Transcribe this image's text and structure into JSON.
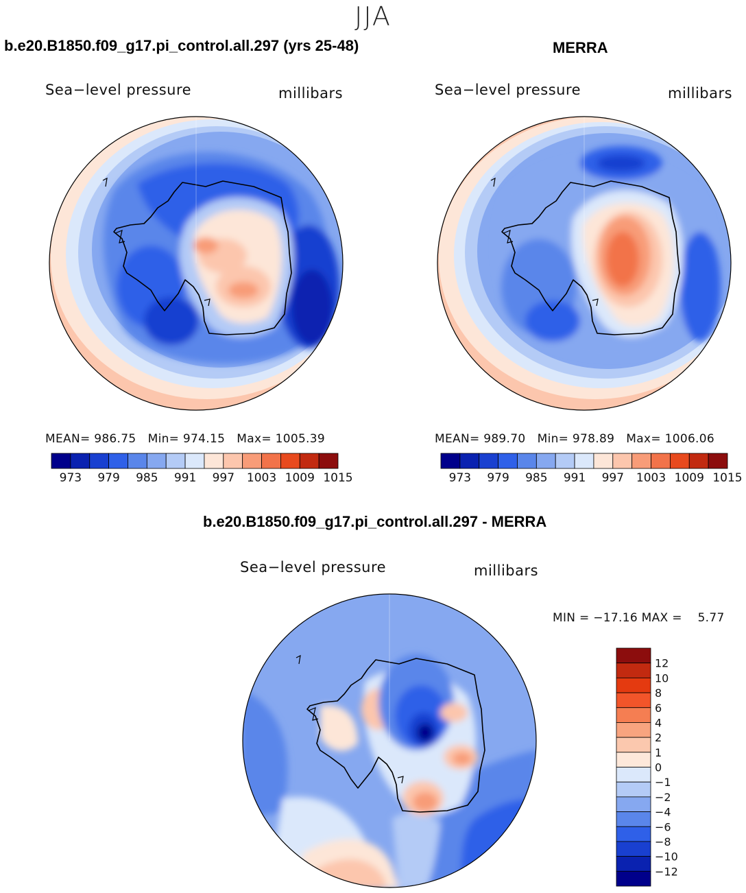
{
  "figure": {
    "season": "JJA",
    "title_left": "b.e20.B1850.f09_g17.pi_control.all.297 (yrs 25-48)",
    "title_right": "MERRA",
    "title_diff": "b.e20.B1850.f09_g17.pi_control.all.297 - MERRA"
  },
  "panels": {
    "model": {
      "variable": "Sea−level pressure",
      "units": "millibars",
      "stats": "MEAN= 986.75   Min= 974.15   Max= 1005.39"
    },
    "obs": {
      "variable": "Sea−level pressure",
      "units": "millibars",
      "stats": "MEAN= 989.70   Min= 978.89   Max= 1006.06"
    },
    "diff": {
      "variable": "Sea−level pressure",
      "units": "millibars",
      "stats": "MIN = −17.16 MAX =    5.77"
    }
  },
  "chart_data": [
    {
      "type": "heatmap",
      "title": "b.e20.B1850.f09_g17.pi_control.all.297 (yrs 25-48)",
      "variable": "Sea-level pressure",
      "units": "millibars",
      "projection": "south polar stereographic",
      "mean": 986.75,
      "min": 974.15,
      "max": 1005.39,
      "levels": [
        973,
        976,
        979,
        982,
        985,
        988,
        991,
        994,
        997,
        1000,
        1003,
        1006,
        1009,
        1012,
        1015
      ],
      "colorbar_tick_labels": [
        "973",
        "979",
        "985",
        "991",
        "997",
        "1003",
        "1009",
        "1015"
      ],
      "colors": [
        "#00008b",
        "#0a22b0",
        "#1940d0",
        "#2f60e8",
        "#5a86ea",
        "#86a8f0",
        "#b4cbf6",
        "#dbe8fb",
        "#fde6d8",
        "#fcc6ad",
        "#f89c78",
        "#f2734a",
        "#e84a1e",
        "#c22a10",
        "#8c0d0d"
      ]
    },
    {
      "type": "heatmap",
      "title": "MERRA",
      "variable": "Sea-level pressure",
      "units": "millibars",
      "projection": "south polar stereographic",
      "mean": 989.7,
      "min": 978.89,
      "max": 1006.06,
      "levels": [
        973,
        976,
        979,
        982,
        985,
        988,
        991,
        994,
        997,
        1000,
        1003,
        1006,
        1009,
        1012,
        1015
      ],
      "colorbar_tick_labels": [
        "973",
        "979",
        "985",
        "991",
        "997",
        "1003",
        "1009",
        "1015"
      ],
      "colors": [
        "#00008b",
        "#0a22b0",
        "#1940d0",
        "#2f60e8",
        "#5a86ea",
        "#86a8f0",
        "#b4cbf6",
        "#dbe8fb",
        "#fde6d8",
        "#fcc6ad",
        "#f89c78",
        "#f2734a",
        "#e84a1e",
        "#c22a10",
        "#8c0d0d"
      ]
    },
    {
      "type": "heatmap",
      "title": "b.e20.B1850.f09_g17.pi_control.all.297 - MERRA",
      "variable": "Sea-level pressure",
      "units": "millibars",
      "projection": "south polar stereographic",
      "min": -17.16,
      "max": 5.77,
      "levels": [
        -12,
        -10,
        -8,
        -6,
        -4,
        -2,
        -1,
        0,
        1,
        2,
        4,
        6,
        8,
        10,
        12
      ],
      "colorbar_tick_labels": [
        "12",
        "10",
        "8",
        "6",
        "4",
        "2",
        "1",
        "0",
        "−1",
        "−2",
        "−4",
        "−6",
        "−8",
        "−10",
        "−12"
      ],
      "colors": [
        "#8c0d0d",
        "#c22a10",
        "#e43a10",
        "#f2552a",
        "#f57e52",
        "#f8a47f",
        "#fbc8ae",
        "#fde8da",
        "#dbe8fb",
        "#b4cbf6",
        "#86a8f0",
        "#5a86ea",
        "#2f60e8",
        "#1940d0",
        "#0a22b0",
        "#00008b"
      ]
    }
  ]
}
